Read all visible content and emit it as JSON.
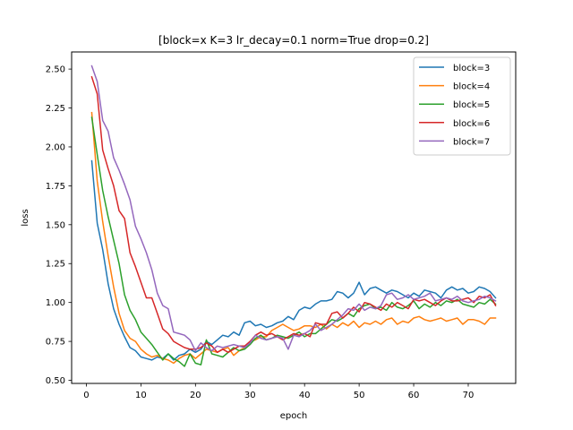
{
  "chart_data": {
    "type": "line",
    "title": "[block=x K=3 lr_decay=0.1 norm=True drop=0.2]",
    "xlabel": "epoch",
    "ylabel": "loss",
    "xlim": [
      -2.7,
      78.7
    ],
    "ylim": [
      0.48,
      2.61
    ],
    "xticks": [
      0,
      10,
      20,
      30,
      40,
      50,
      60,
      70
    ],
    "xtick_labels": [
      "0",
      "10",
      "20",
      "30",
      "40",
      "50",
      "60",
      "70"
    ],
    "yticks": [
      0.5,
      0.75,
      1.0,
      1.25,
      1.5,
      1.75,
      2.0,
      2.25,
      2.5
    ],
    "ytick_labels": [
      "0.50",
      "0.75",
      "1.00",
      "1.25",
      "1.50",
      "1.75",
      "2.00",
      "2.25",
      "2.50"
    ],
    "grid": false,
    "legend_position": "top-right",
    "x": [
      1,
      2,
      3,
      4,
      5,
      6,
      7,
      8,
      9,
      10,
      11,
      12,
      13,
      14,
      15,
      16,
      17,
      18,
      19,
      20,
      21,
      22,
      23,
      24,
      25,
      26,
      27,
      28,
      29,
      30,
      31,
      32,
      33,
      34,
      35,
      36,
      37,
      38,
      39,
      40,
      41,
      42,
      43,
      44,
      45,
      46,
      47,
      48,
      49,
      50,
      51,
      52,
      53,
      54,
      55,
      56,
      57,
      58,
      59,
      60,
      61,
      62,
      63,
      64,
      65,
      66,
      67,
      68,
      69,
      70,
      71,
      72,
      73,
      74,
      75
    ],
    "series": [
      {
        "name": "block=3",
        "color": "#1f77b4",
        "values": [
          1.91,
          1.51,
          1.34,
          1.12,
          0.96,
          0.86,
          0.78,
          0.71,
          0.69,
          0.65,
          0.64,
          0.63,
          0.65,
          0.64,
          0.67,
          0.63,
          0.66,
          0.67,
          0.7,
          0.68,
          0.7,
          0.75,
          0.73,
          0.76,
          0.79,
          0.78,
          0.81,
          0.79,
          0.87,
          0.88,
          0.85,
          0.86,
          0.84,
          0.85,
          0.87,
          0.88,
          0.91,
          0.89,
          0.95,
          0.97,
          0.96,
          0.99,
          1.01,
          1.01,
          1.02,
          1.07,
          1.06,
          1.03,
          1.06,
          1.13,
          1.05,
          1.09,
          1.1,
          1.08,
          1.06,
          1.08,
          1.07,
          1.05,
          1.03,
          1.06,
          1.04,
          1.08,
          1.07,
          1.06,
          1.03,
          1.08,
          1.1,
          1.08,
          1.09,
          1.06,
          1.07,
          1.1,
          1.09,
          1.07,
          1.03
        ]
      },
      {
        "name": "block=4",
        "color": "#ff7f0e",
        "values": [
          2.22,
          1.78,
          1.52,
          1.3,
          1.1,
          0.93,
          0.82,
          0.77,
          0.75,
          0.7,
          0.67,
          0.65,
          0.66,
          0.64,
          0.63,
          0.61,
          0.64,
          0.66,
          0.67,
          0.64,
          0.67,
          0.7,
          0.69,
          0.68,
          0.7,
          0.71,
          0.66,
          0.69,
          0.71,
          0.75,
          0.76,
          0.78,
          0.78,
          0.82,
          0.84,
          0.86,
          0.84,
          0.82,
          0.83,
          0.85,
          0.85,
          0.84,
          0.86,
          0.83,
          0.86,
          0.84,
          0.87,
          0.85,
          0.88,
          0.84,
          0.87,
          0.86,
          0.88,
          0.86,
          0.89,
          0.9,
          0.86,
          0.88,
          0.87,
          0.9,
          0.91,
          0.89,
          0.88,
          0.89,
          0.9,
          0.88,
          0.89,
          0.9,
          0.86,
          0.89,
          0.89,
          0.88,
          0.86,
          0.9,
          0.9
        ]
      },
      {
        "name": "block=5",
        "color": "#2ca02c",
        "values": [
          2.19,
          1.95,
          1.72,
          1.55,
          1.4,
          1.25,
          1.05,
          0.95,
          0.89,
          0.81,
          0.77,
          0.73,
          0.68,
          0.63,
          0.67,
          0.64,
          0.62,
          0.59,
          0.67,
          0.61,
          0.6,
          0.76,
          0.67,
          0.66,
          0.65,
          0.68,
          0.71,
          0.69,
          0.7,
          0.73,
          0.77,
          0.79,
          0.76,
          0.77,
          0.79,
          0.78,
          0.77,
          0.79,
          0.81,
          0.78,
          0.8,
          0.8,
          0.83,
          0.86,
          0.89,
          0.88,
          0.9,
          0.93,
          0.91,
          0.96,
          0.98,
          0.99,
          0.96,
          0.97,
          0.95,
          1.0,
          0.97,
          0.96,
          0.98,
          1.01,
          0.96,
          0.99,
          0.97,
          1.0,
          0.98,
          1.01,
          1.0,
          1.02,
          0.99,
          0.98,
          0.97,
          1.0,
          0.99,
          1.02,
          0.99
        ]
      },
      {
        "name": "block=6",
        "color": "#d62728",
        "values": [
          2.45,
          2.34,
          1.98,
          1.86,
          1.75,
          1.59,
          1.54,
          1.32,
          1.23,
          1.13,
          1.03,
          1.03,
          0.93,
          0.83,
          0.8,
          0.75,
          0.73,
          0.71,
          0.7,
          0.7,
          0.71,
          0.74,
          0.72,
          0.68,
          0.7,
          0.68,
          0.7,
          0.72,
          0.72,
          0.75,
          0.79,
          0.81,
          0.79,
          0.8,
          0.78,
          0.76,
          0.78,
          0.8,
          0.79,
          0.8,
          0.78,
          0.87,
          0.86,
          0.86,
          0.93,
          0.94,
          0.9,
          0.93,
          0.97,
          0.94,
          1.0,
          0.99,
          0.97,
          0.95,
          0.99,
          0.97,
          1.0,
          0.98,
          0.96,
          1.02,
          1.01,
          1.02,
          1.0,
          0.98,
          1.01,
          1.03,
          1.01,
          1.01,
          1.02,
          1.03,
          1.0,
          1.04,
          1.03,
          1.05,
          0.98
        ]
      },
      {
        "name": "block=7",
        "color": "#9467bd",
        "values": [
          2.52,
          2.42,
          2.17,
          2.1,
          1.93,
          1.85,
          1.76,
          1.66,
          1.49,
          1.41,
          1.32,
          1.21,
          1.06,
          0.98,
          0.96,
          0.81,
          0.8,
          0.79,
          0.76,
          0.69,
          0.74,
          0.71,
          0.69,
          0.72,
          0.71,
          0.72,
          0.73,
          0.72,
          0.71,
          0.74,
          0.79,
          0.77,
          0.76,
          0.77,
          0.78,
          0.77,
          0.7,
          0.79,
          0.78,
          0.8,
          0.82,
          0.86,
          0.82,
          0.84,
          0.86,
          0.89,
          0.92,
          0.96,
          0.95,
          0.99,
          0.95,
          0.97,
          0.96,
          0.98,
          1.05,
          1.06,
          1.02,
          1.03,
          1.05,
          1.02,
          1.03,
          1.04,
          1.06,
          1.01,
          1.02,
          1.03,
          1.02,
          1.04,
          1.01,
          1.0,
          1.01,
          1.02,
          1.04,
          1.03,
          1.01
        ]
      }
    ]
  }
}
